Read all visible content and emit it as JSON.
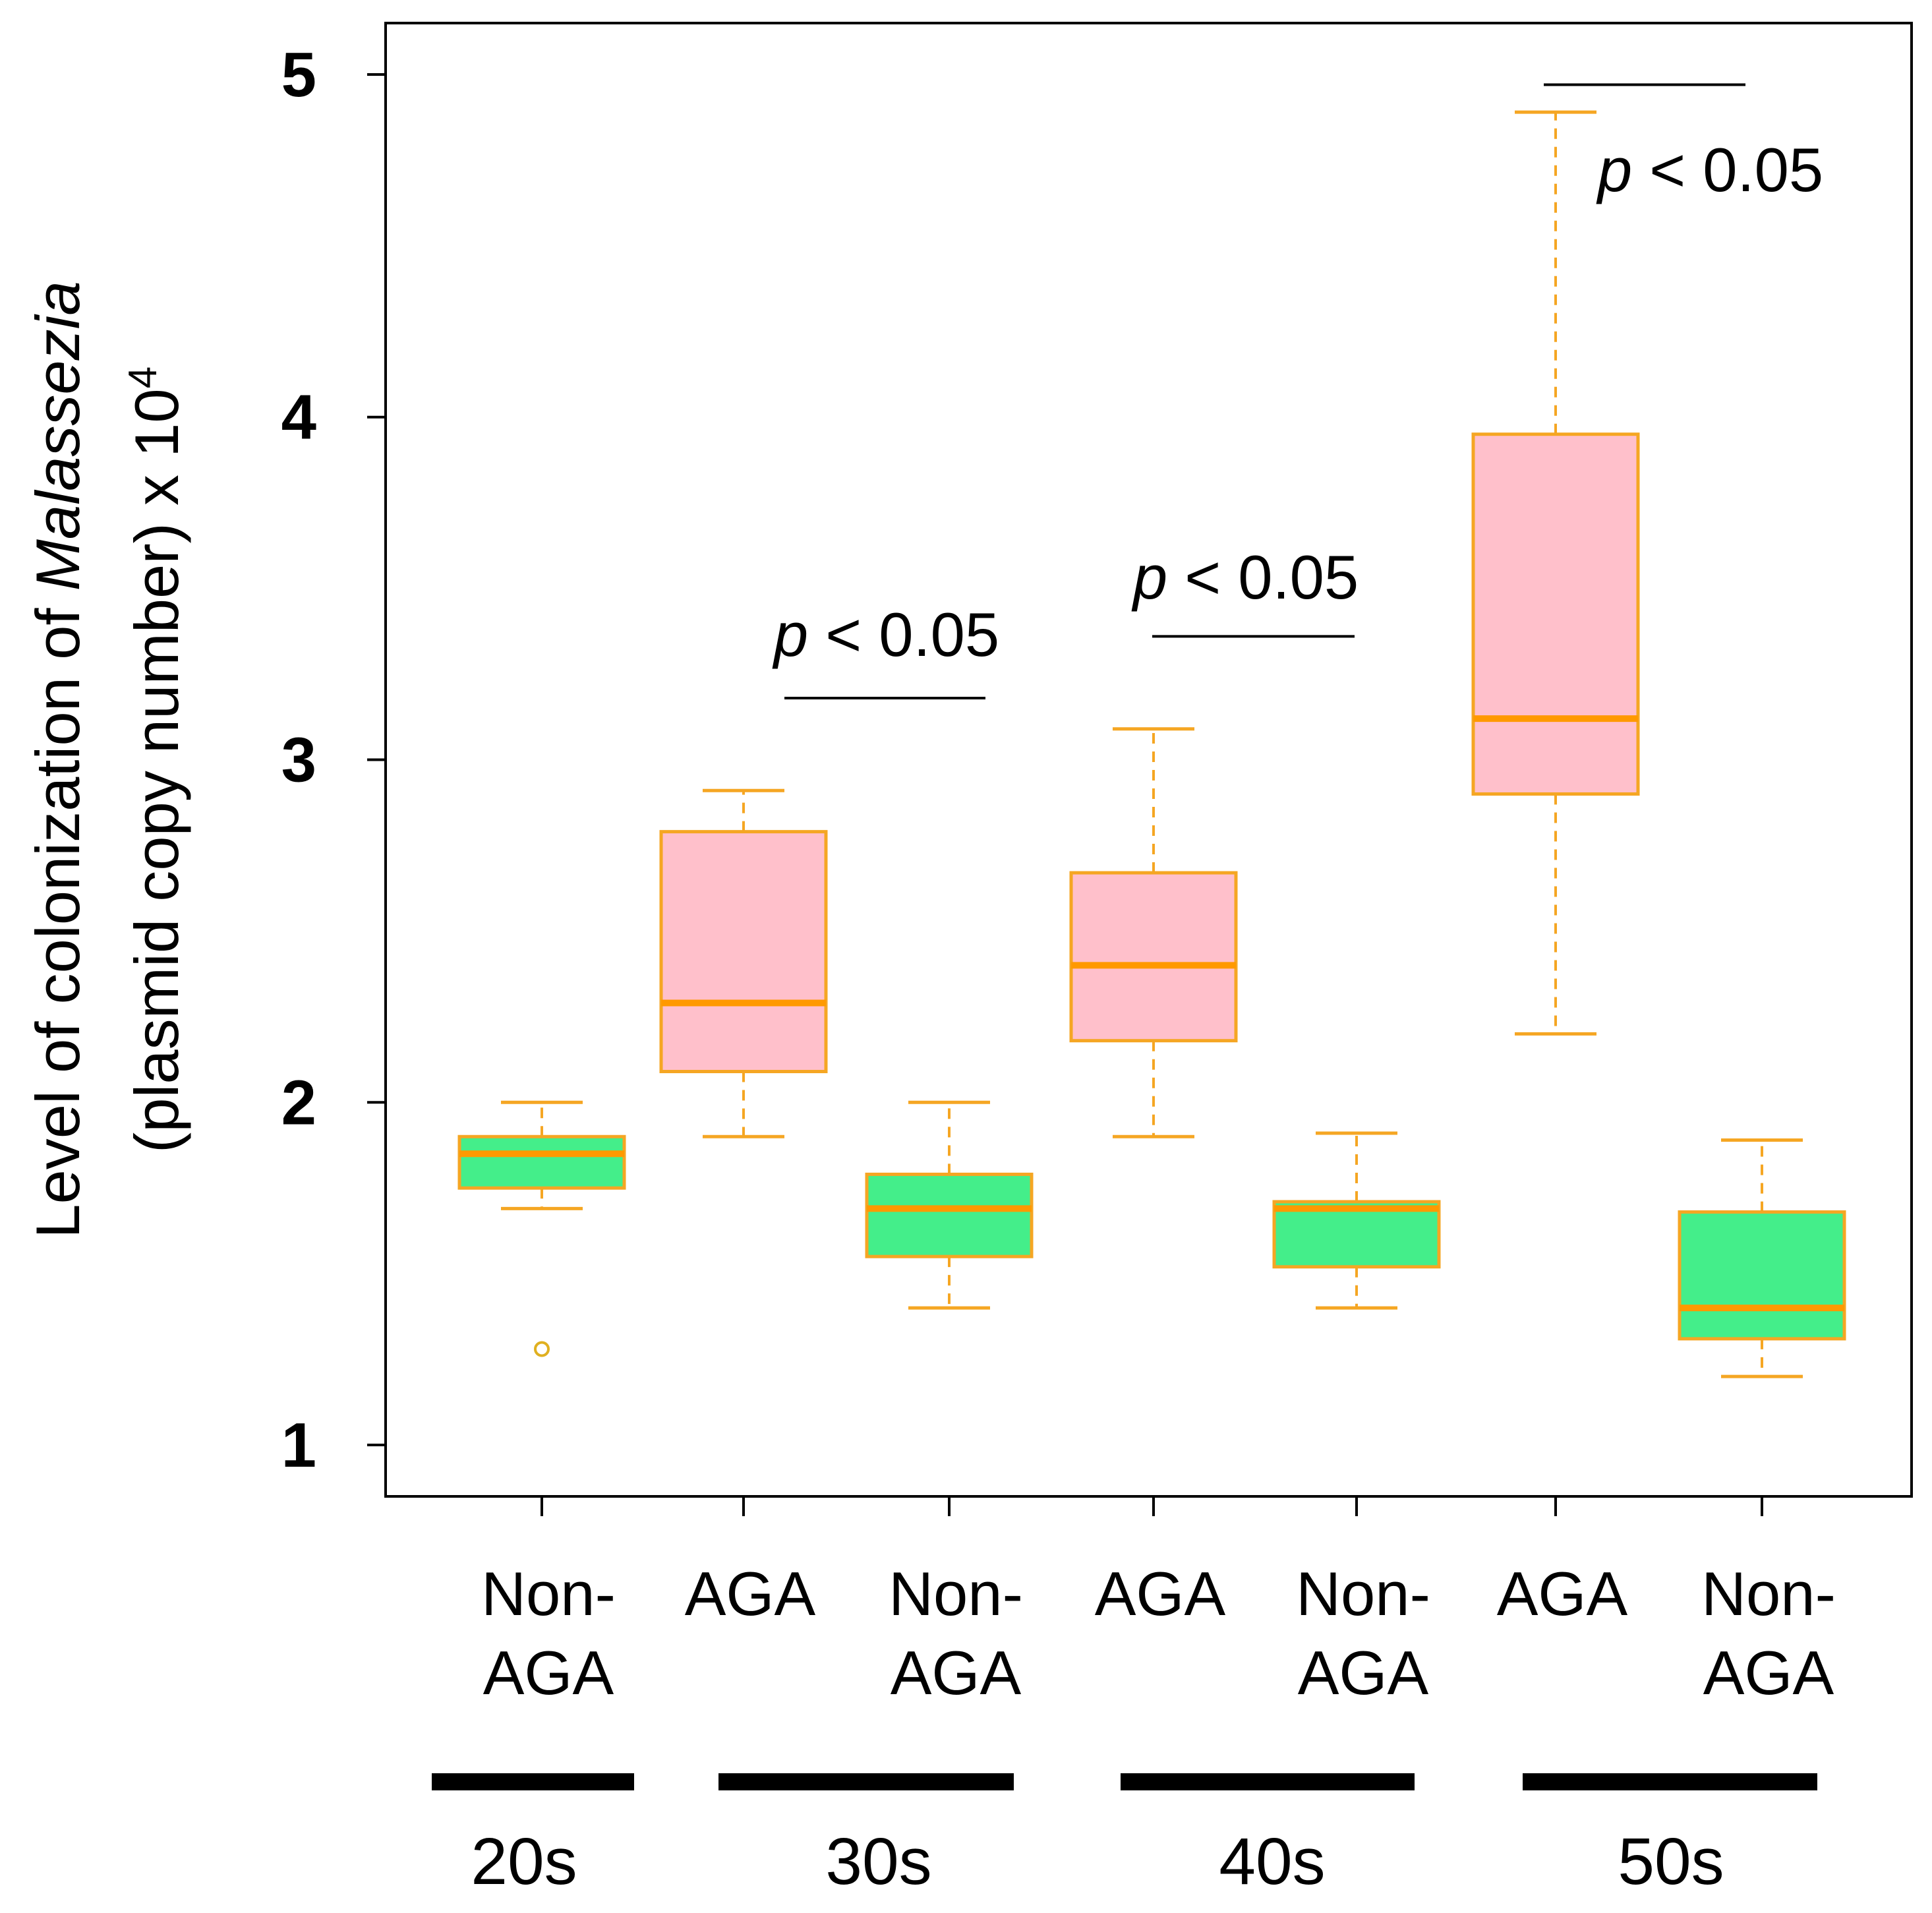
{
  "chart_data": {
    "type": "box",
    "ylabel": {
      "line1_prefix": "Level of colonization of ",
      "line1_italic": "Malassezia",
      "line2_main": "(plasmid copy number) x 10",
      "line2_sup": "4"
    },
    "ylim": [
      0.85,
      5.15
    ],
    "yticks": [
      "1",
      "2",
      "3",
      "4",
      "5"
    ],
    "colors": {
      "aga_fill": "#ffc0cb",
      "non_aga_fill": "#44ee8a",
      "box_stroke": "#f5a623",
      "median": "#ff9900",
      "whisker": "#f5a623",
      "outlier": "#e0b020"
    },
    "boxes": [
      {
        "line1": "Non-",
        "line2": "AGA",
        "kind": "non_aga",
        "min": 1.69,
        "q1": 1.75,
        "median": 1.85,
        "q3": 1.9,
        "max": 2.0,
        "outliers": [
          1.28
        ]
      },
      {
        "line1": "AGA",
        "line2": "",
        "kind": "aga",
        "min": 1.9,
        "q1": 2.09,
        "median": 2.29,
        "q3": 2.79,
        "max": 2.91,
        "outliers": []
      },
      {
        "line1": "Non-",
        "line2": "AGA",
        "kind": "non_aga",
        "min": 1.4,
        "q1": 1.55,
        "median": 1.69,
        "q3": 1.79,
        "max": 2.0,
        "outliers": []
      },
      {
        "line1": "AGA",
        "line2": "",
        "kind": "aga",
        "min": 1.9,
        "q1": 2.18,
        "median": 2.4,
        "q3": 2.67,
        "max": 3.09,
        "outliers": []
      },
      {
        "line1": "Non-",
        "line2": "AGA",
        "kind": "non_aga",
        "min": 1.4,
        "q1": 1.52,
        "median": 1.69,
        "q3": 1.71,
        "max": 1.91,
        "outliers": []
      },
      {
        "line1": "AGA",
        "line2": "",
        "kind": "aga",
        "min": 2.2,
        "q1": 2.9,
        "median": 3.12,
        "q3": 3.95,
        "max": 4.89,
        "outliers": []
      },
      {
        "line1": "Non-",
        "line2": "AGA",
        "kind": "non_aga",
        "min": 1.2,
        "q1": 1.31,
        "median": 1.4,
        "q3": 1.68,
        "max": 1.89,
        "outliers": []
      }
    ],
    "age_groups": [
      {
        "label": "20s",
        "boxes": [
          0,
          0
        ]
      },
      {
        "label": "30s",
        "boxes": [
          1,
          2
        ]
      },
      {
        "label": "40s",
        "boxes": [
          3,
          4
        ]
      },
      {
        "label": "50s",
        "boxes": [
          5,
          6
        ]
      }
    ],
    "significance": [
      {
        "from": 1,
        "to": 2,
        "y": 3.18,
        "p_italic": "p",
        "p_rest": " < 0.05"
      },
      {
        "from": 3,
        "to": 4,
        "y": 3.36,
        "p_italic": "p",
        "p_rest": " < 0.05"
      },
      {
        "from": 5,
        "to": 6,
        "y": 4.97,
        "p_italic": "p",
        "p_rest": " < 0.05"
      }
    ]
  }
}
